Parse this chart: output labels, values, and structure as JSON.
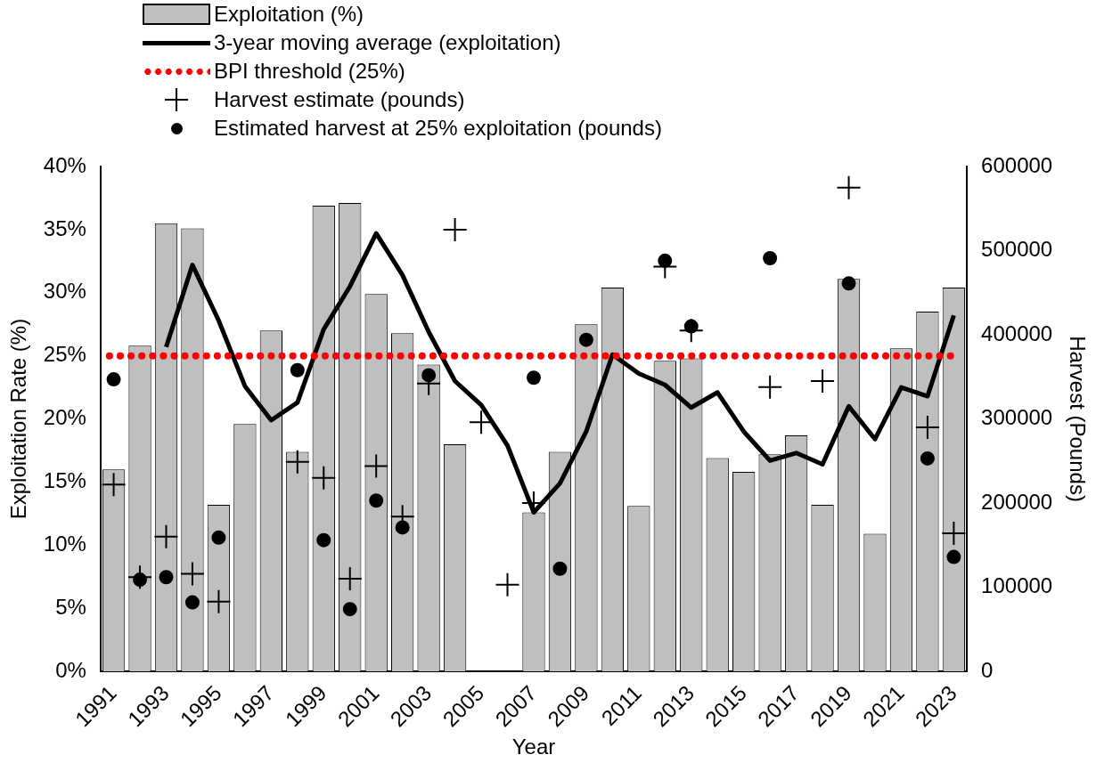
{
  "chart_data": {
    "type": "bar",
    "xlabel": "Year",
    "ylabel": "Exploitation Rate (%)",
    "y2label": "Harvest (Pounds)",
    "categories": [
      "1991",
      null,
      "1993",
      null,
      "1995",
      null,
      "1997",
      null,
      "1999",
      null,
      "2001",
      null,
      "2003",
      null,
      "2005",
      null,
      "2007",
      null,
      "2009",
      null,
      "2011",
      null,
      "2013",
      null,
      "2015",
      null,
      "2017",
      null,
      "2019",
      null,
      "2021",
      null,
      "2023"
    ],
    "series": [
      {
        "name": "Exploitation (%)",
        "color": "#bfbfbf",
        "values": [
          16.0,
          25.8,
          35.5,
          35.1,
          13.2,
          19.6,
          27.0,
          17.4,
          36.9,
          37.1,
          29.9,
          26.8,
          24.3,
          18.0,
          null,
          null,
          12.6,
          17.4,
          27.5,
          30.4,
          13.1,
          24.6,
          24.8,
          16.9,
          15.8,
          17.2,
          18.7,
          13.2,
          31.1,
          10.9,
          25.6,
          28.5,
          30.4
        ]
      },
      {
        "name": "3-year moving average (exploitation)",
        "type": "line",
        "color": "#000000",
        "marker": "none",
        "values": [
          null,
          null,
          25.7,
          32.2,
          27.8,
          22.6,
          19.9,
          21.3,
          27.1,
          30.5,
          34.7,
          31.4,
          26.9,
          23.0,
          21.1,
          17.9,
          12.6,
          14.9,
          19.0,
          25.1,
          23.6,
          22.7,
          20.9,
          22.1,
          19.0,
          16.7,
          17.3,
          16.4,
          21.0,
          18.4,
          22.5,
          21.8,
          28.2
        ]
      },
      {
        "name": "Harvest estimate (pounds)",
        "type": "scatter",
        "axis": "y2",
        "color": "#000000",
        "marker": "cross",
        "values": [
          222000,
          112000,
          160000,
          116000,
          83000,
          null,
          null,
          249000,
          230000,
          110000,
          244000,
          184000,
          342000,
          525000,
          296000,
          103000,
          200000,
          null,
          null,
          null,
          null,
          481000,
          405000,
          null,
          null,
          338000,
          null,
          345000,
          575000,
          null,
          null,
          290000,
          164000
        ]
      },
      {
        "name": "Estimated harvest at 25% exploitation (pounds)",
        "type": "scatter",
        "axis": "y2",
        "color": "#000000",
        "marker": "circle",
        "values": [
          347000,
          109000,
          112000,
          82000,
          159000,
          null,
          null,
          358000,
          156000,
          74000,
          203000,
          171000,
          352000,
          null,
          null,
          null,
          349000,
          122000,
          394000,
          null,
          null,
          488000,
          410000,
          null,
          null,
          491000,
          null,
          null,
          461000,
          null,
          null,
          253000,
          136000
        ]
      }
    ],
    "ref_lines": [
      {
        "axis": "y",
        "value": 25,
        "label": "BPI threshold (25%)",
        "color": "#ff0000",
        "line_style": "dotted"
      }
    ],
    "ylim": [
      0,
      40
    ],
    "yticks": [
      {
        "value": 0,
        "label": "0%"
      },
      {
        "value": 5,
        "label": "5%"
      },
      {
        "value": 10,
        "label": "10%"
      },
      {
        "value": 15,
        "label": "15%"
      },
      {
        "value": 20,
        "label": "20%"
      },
      {
        "value": 25,
        "label": "25%"
      },
      {
        "value": 30,
        "label": "30%"
      },
      {
        "value": 35,
        "label": "35%"
      },
      {
        "value": 40,
        "label": "40%"
      }
    ],
    "y2lim": [
      0,
      600000
    ],
    "y2ticks": [
      0,
      100000,
      200000,
      300000,
      400000,
      500000,
      600000
    ],
    "grid": false,
    "legend": "top"
  }
}
